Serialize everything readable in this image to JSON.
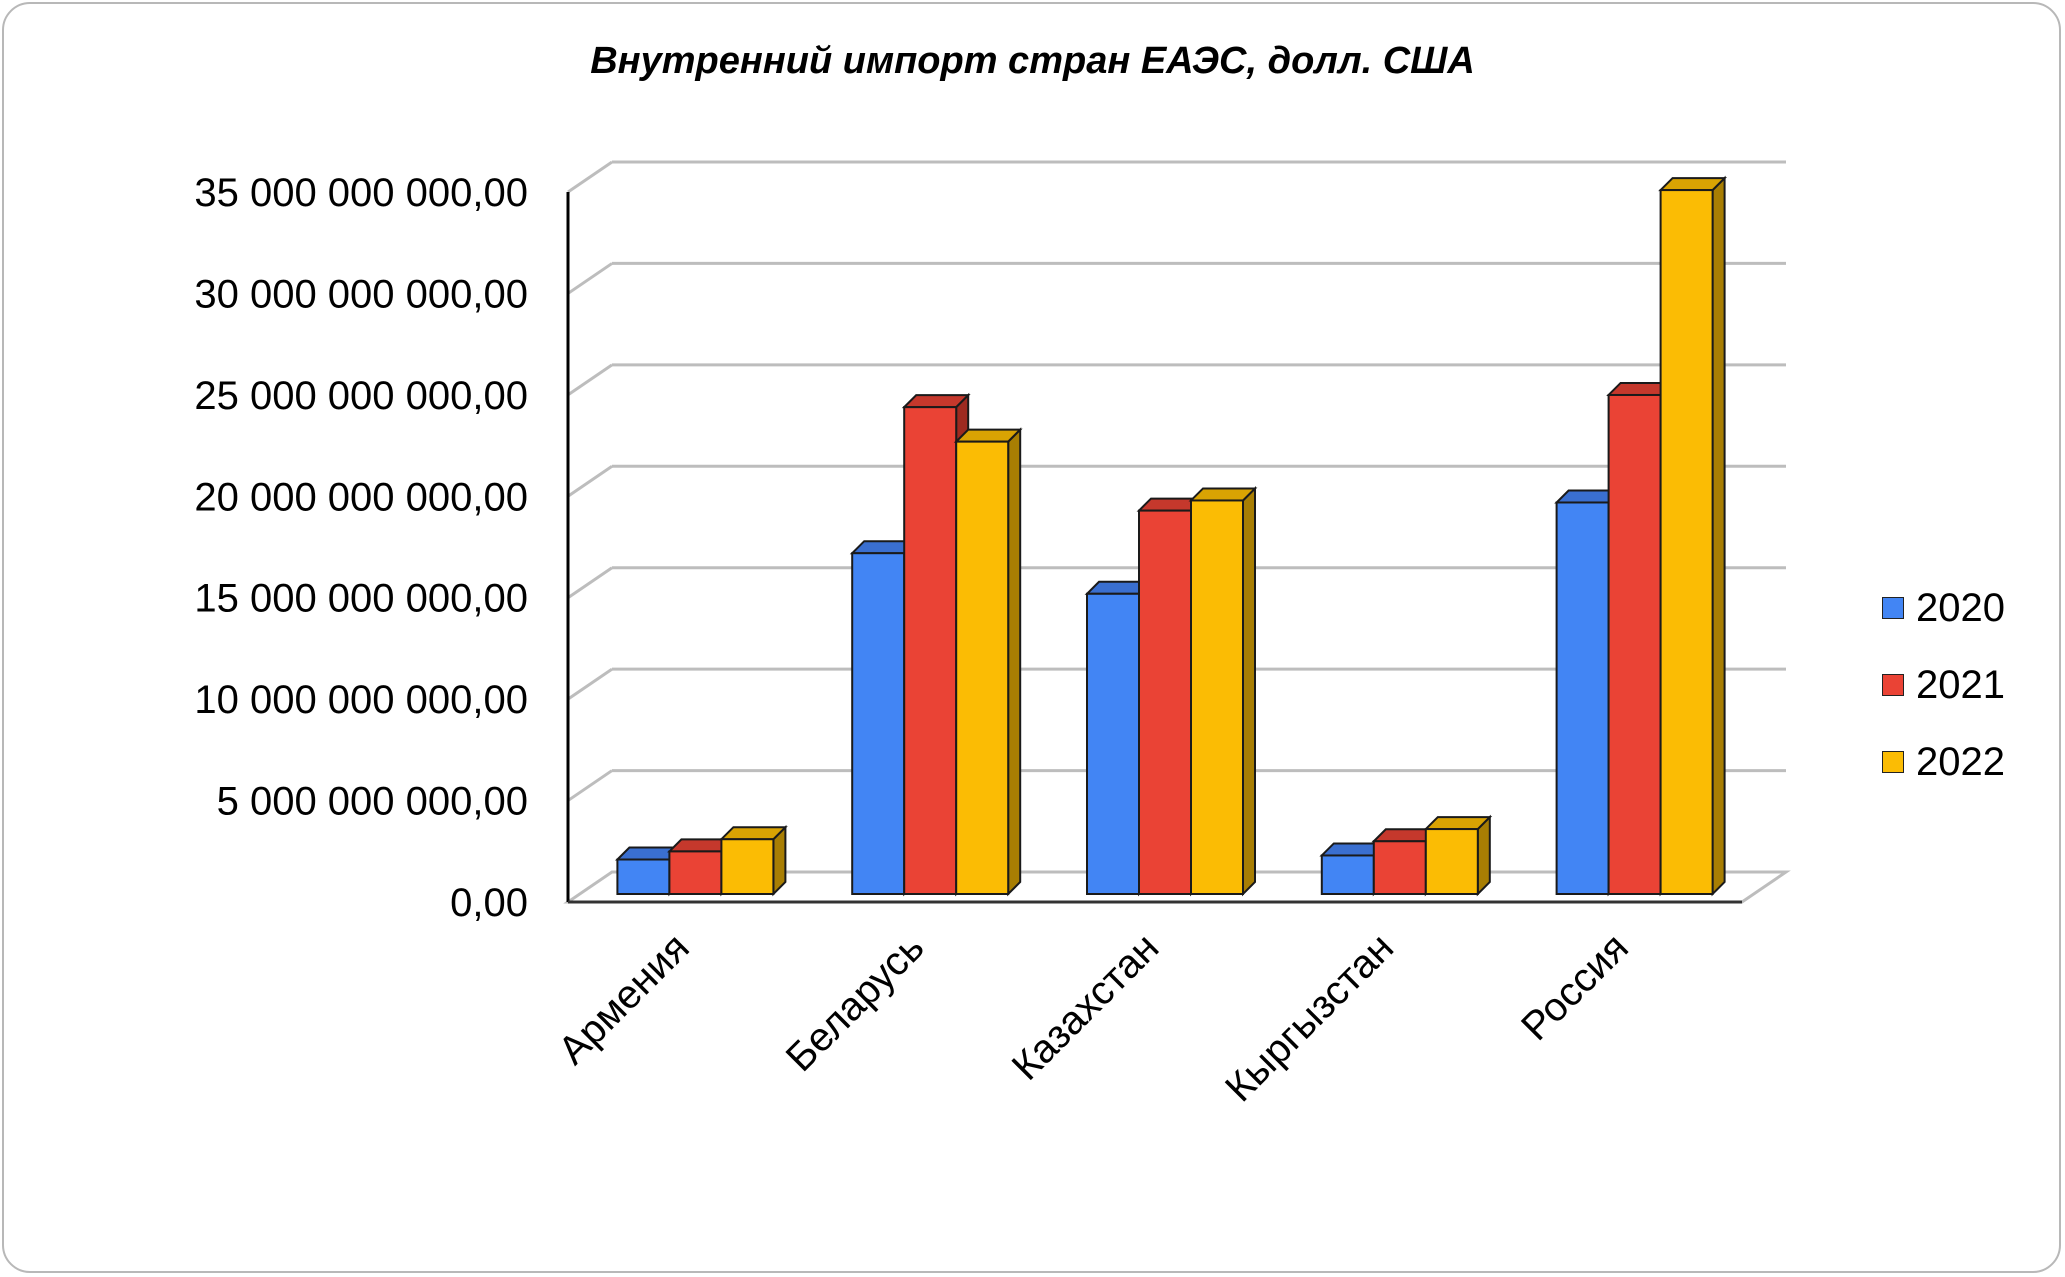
{
  "chart_data": {
    "type": "bar",
    "title": "Внутренний импорт стран ЕАЭС, долл. США",
    "xlabel": "",
    "ylabel": "",
    "categories": [
      "Армения",
      "Беларусь",
      "Казахстан",
      "Кыргызстан",
      "Россия"
    ],
    "series": [
      {
        "name": "2020",
        "color": "#4285f4",
        "side_color": "#2b5cad",
        "top_color": "#3a6fd0",
        "values": [
          1700000000,
          16800000000,
          14800000000,
          1900000000,
          19300000000
        ]
      },
      {
        "name": "2021",
        "color": "#ea4335",
        "side_color": "#9e2a20",
        "top_color": "#c5382c",
        "values": [
          2100000000,
          24000000000,
          18900000000,
          2600000000,
          24600000000
        ]
      },
      {
        "name": "2022",
        "color": "#fbbc04",
        "side_color": "#a87e03",
        "top_color": "#d9a303",
        "values": [
          2700000000,
          22300000000,
          19400000000,
          3200000000,
          34700000000
        ]
      }
    ],
    "ylim": [
      0,
      35000000000
    ],
    "yticks": [
      {
        "value": 0,
        "label": "0,00"
      },
      {
        "value": 5000000000,
        "label": "5 000 000 000,00"
      },
      {
        "value": 10000000000,
        "label": "10 000 000 000,00"
      },
      {
        "value": 15000000000,
        "label": "15 000 000 000,00"
      },
      {
        "value": 20000000000,
        "label": "20 000 000 000,00"
      },
      {
        "value": 25000000000,
        "label": "25 000 000 000,00"
      },
      {
        "value": 30000000000,
        "label": "30 000 000 000,00"
      },
      {
        "value": 35000000000,
        "label": "35 000 000 000,00"
      }
    ],
    "grid": true,
    "legend": "right",
    "style": "3d-clustered-column"
  }
}
